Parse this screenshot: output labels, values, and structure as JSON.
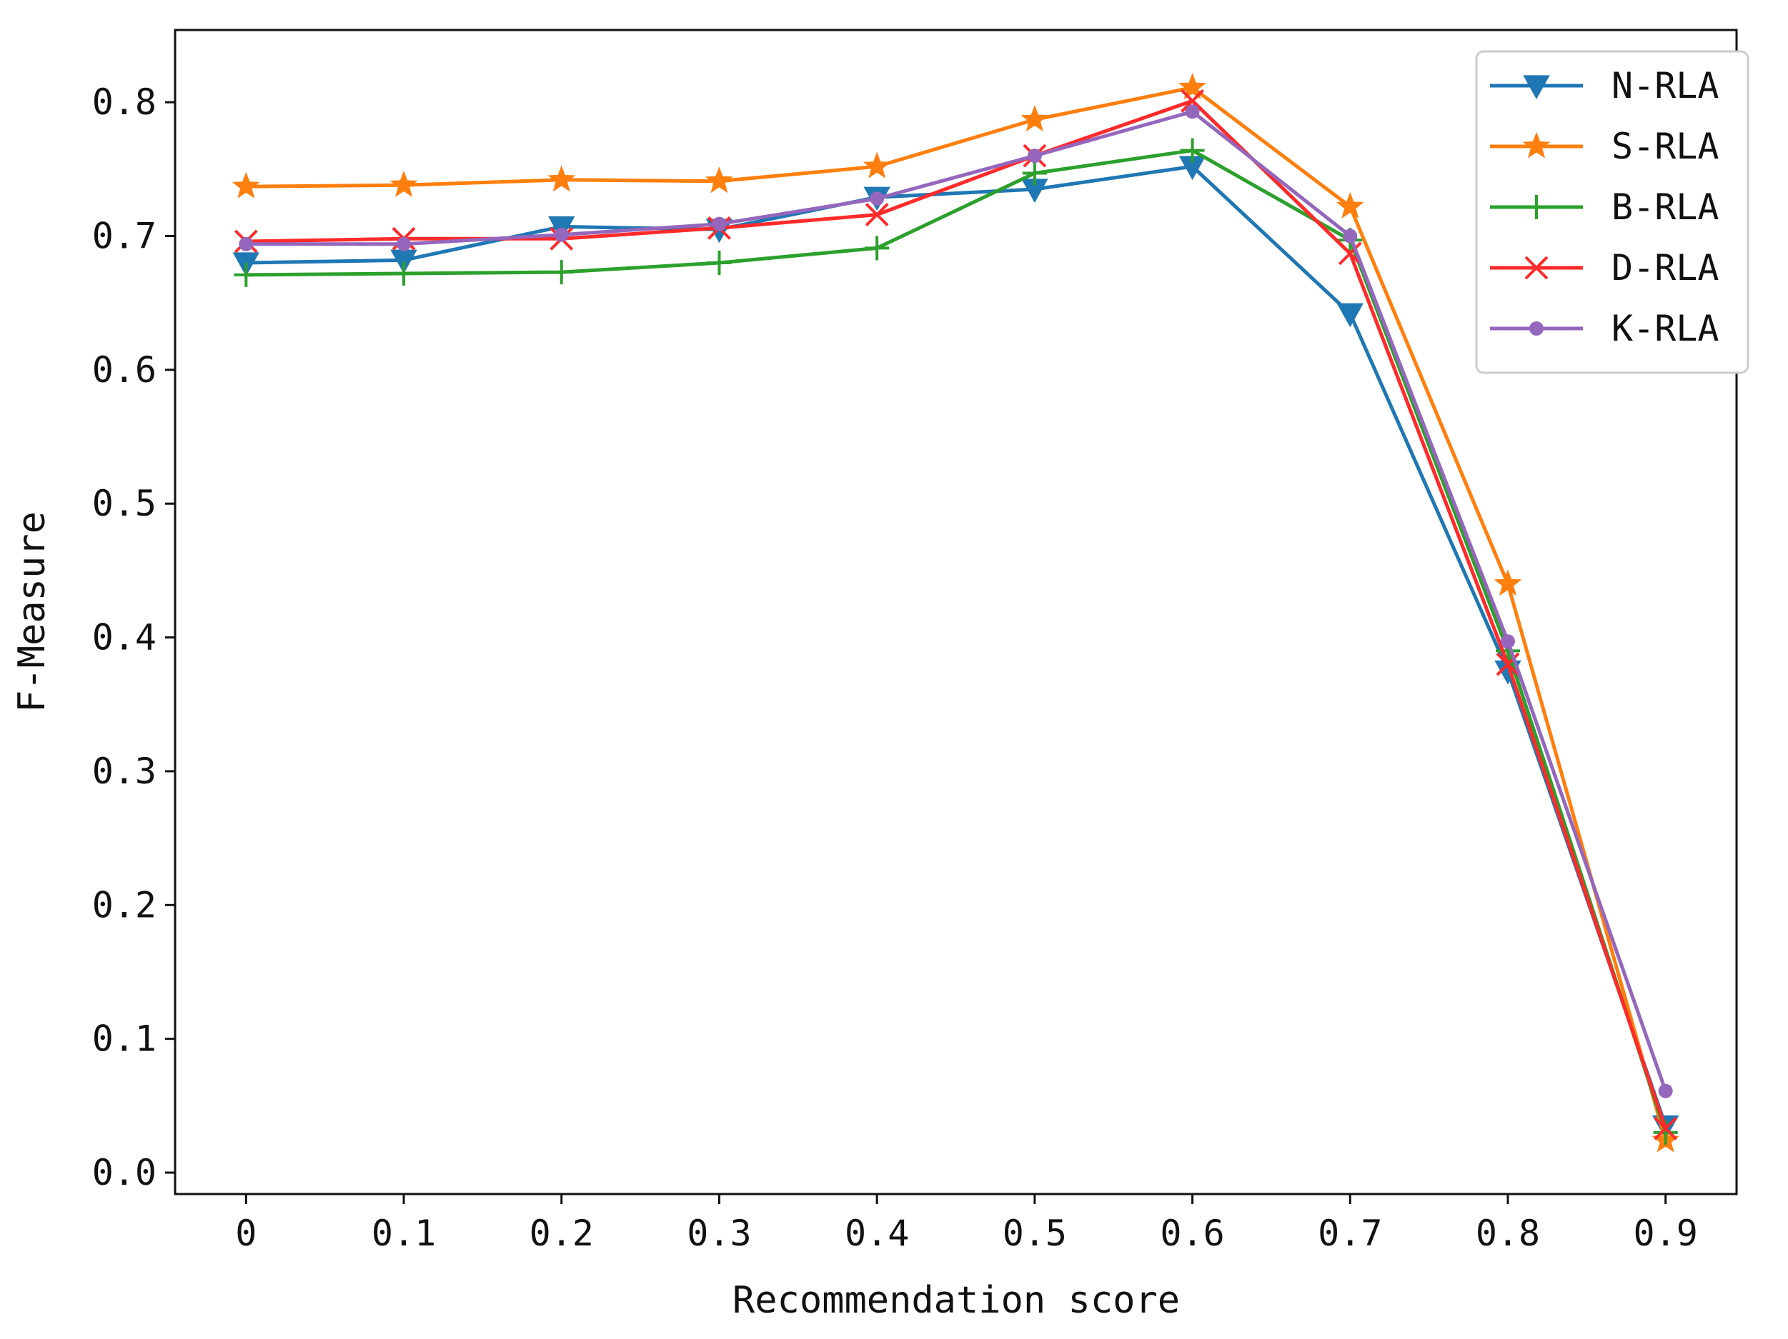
{
  "chart_data": {
    "type": "line",
    "title": "",
    "xlabel": "Recommendation score",
    "ylabel": "F-Measure",
    "x": [
      0,
      0.1,
      0.2,
      0.3,
      0.4,
      0.5,
      0.6,
      0.7,
      0.8,
      0.9
    ],
    "x_tick_labels": [
      "0",
      "0.1",
      "0.2",
      "0.3",
      "0.4",
      "0.5",
      "0.6",
      "0.7",
      "0.8",
      "0.9"
    ],
    "yticks": [
      0.0,
      0.1,
      0.2,
      0.3,
      0.4,
      0.5,
      0.6,
      0.7,
      0.8
    ],
    "y_tick_labels": [
      "0.0",
      "0.1",
      "0.2",
      "0.3",
      "0.4",
      "0.5",
      "0.6",
      "0.7",
      "0.8"
    ],
    "xlim": [
      -0.045,
      0.945
    ],
    "ylim": [
      -0.016,
      0.854
    ],
    "grid": false,
    "legend_position": "top-right",
    "series": [
      {
        "name": "N-RLA",
        "color": "#1f77b4",
        "marker": "triangle-down",
        "values": [
          0.68,
          0.682,
          0.707,
          0.705,
          0.729,
          0.735,
          0.752,
          0.642,
          0.375,
          0.035
        ]
      },
      {
        "name": "S-RLA",
        "color": "#ff7f0e",
        "marker": "star",
        "values": [
          0.737,
          0.738,
          0.742,
          0.741,
          0.752,
          0.787,
          0.811,
          0.722,
          0.44,
          0.024
        ]
      },
      {
        "name": "B-RLA",
        "color": "#2ca02c",
        "marker": "plus",
        "values": [
          0.671,
          0.672,
          0.673,
          0.68,
          0.691,
          0.747,
          0.764,
          0.697,
          0.39,
          0.03
        ]
      },
      {
        "name": "D-RLA",
        "color": "#ff2a2a",
        "marker": "x",
        "values": [
          0.696,
          0.698,
          0.698,
          0.706,
          0.716,
          0.76,
          0.801,
          0.687,
          0.38,
          0.033
        ]
      },
      {
        "name": "K-RLA",
        "color": "#9467bd",
        "marker": "circle",
        "values": [
          0.694,
          0.694,
          0.701,
          0.709,
          0.728,
          0.76,
          0.793,
          0.7,
          0.397,
          0.061
        ]
      }
    ]
  }
}
